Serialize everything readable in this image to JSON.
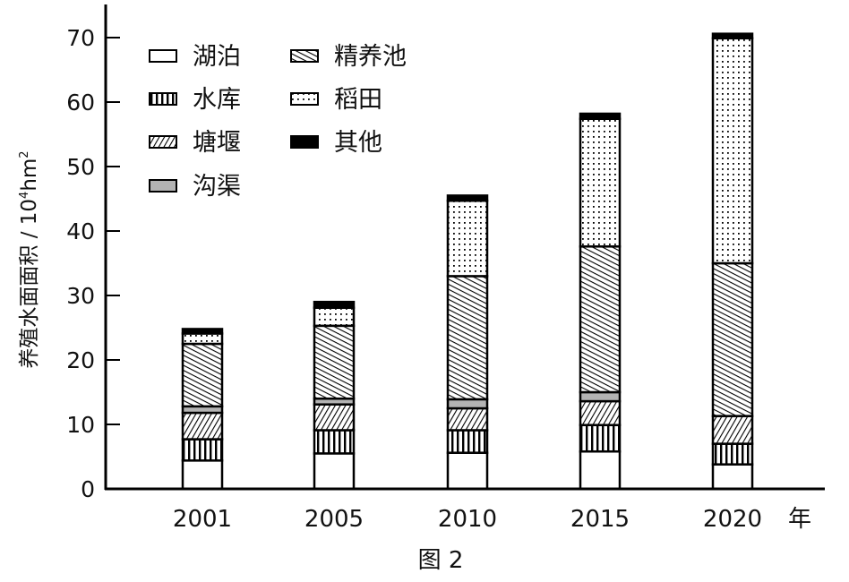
{
  "chart_data": {
    "type": "bar",
    "stacked": true,
    "categories": [
      "2001",
      "2005",
      "2010",
      "2015",
      "2020"
    ],
    "x_unit": "年",
    "ylabel": "养殖水面面积 / 10⁴hm²",
    "ylabel_main": "养殖水面面积 / 10",
    "ylabel_exp": "4",
    "ylabel_unit": "hm",
    "ylabel_sup2": "2",
    "ylim": [
      0,
      70
    ],
    "yticks": [
      0,
      10,
      20,
      30,
      40,
      50,
      60,
      70
    ],
    "caption": "图 2",
    "legend_placement": "top-left",
    "series": [
      {
        "name": "湖泊",
        "pattern": "empty",
        "values": [
          4.4,
          5.5,
          5.6,
          5.8,
          3.8
        ]
      },
      {
        "name": "水库",
        "pattern": "vertical",
        "values": [
          3.3,
          3.6,
          3.5,
          4.1,
          3.2
        ]
      },
      {
        "name": "塘堰",
        "pattern": "hatch-up",
        "values": [
          4.1,
          4.0,
          3.4,
          3.7,
          4.3
        ]
      },
      {
        "name": "沟渠",
        "pattern": "gray",
        "values": [
          1.0,
          0.9,
          1.4,
          1.4,
          0
        ]
      },
      {
        "name": "精养池",
        "pattern": "hatch-down",
        "values": [
          9.7,
          11.3,
          19.1,
          22.6,
          23.7
        ]
      },
      {
        "name": "稻田",
        "pattern": "dots",
        "values": [
          1.6,
          2.8,
          11.7,
          19.8,
          34.9
        ]
      },
      {
        "name": "其他",
        "pattern": "solid",
        "values": [
          0.7,
          0.9,
          0.8,
          0.8,
          0.7
        ]
      }
    ],
    "colors": {
      "gray": "#b3b3b3",
      "ink": "#000000"
    }
  }
}
